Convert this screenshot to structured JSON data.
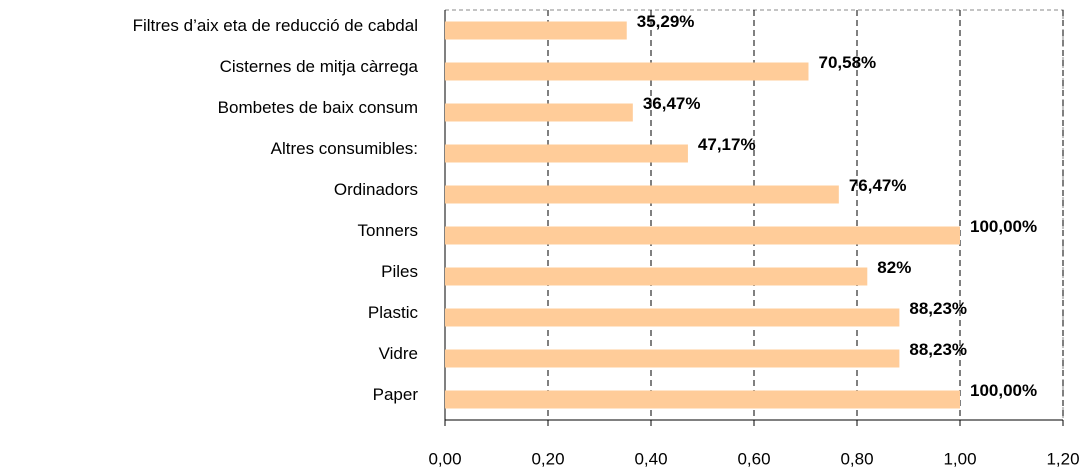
{
  "chart_data": {
    "type": "bar",
    "orientation": "horizontal",
    "categories": [
      "Filtres d’aix eta de reducció de cabdal",
      "Cisternes de mitja càrrega",
      "Bombetes de baix  consum",
      "Altres consumibles:",
      "Ordinadors",
      "Tonners",
      "Piles",
      "Plastic",
      "Vidre",
      "Paper"
    ],
    "values": [
      0.3529,
      0.7058,
      0.3647,
      0.4717,
      0.7647,
      1.0,
      0.82,
      0.8823,
      0.8823,
      1.0
    ],
    "value_labels": [
      "35,29%",
      "70,58%",
      "36,47%",
      "47,17%",
      "76,47%",
      "100,00%",
      "82%",
      "88,23%",
      "88,23%",
      "100,00%"
    ],
    "color": "#ffcc99",
    "xlim": [
      0,
      1.2
    ],
    "xticks": [
      {
        "value": 0,
        "label": "0,00"
      },
      {
        "value": 0.2,
        "label": "0,20"
      },
      {
        "value": 0.4,
        "label": "0,40"
      },
      {
        "value": 0.6,
        "label": "0,60"
      },
      {
        "value": 0.8,
        "label": "0,80"
      },
      {
        "value": 1.0,
        "label": "1,00"
      },
      {
        "value": 1.2,
        "label": "1,20"
      }
    ],
    "grid": true
  }
}
